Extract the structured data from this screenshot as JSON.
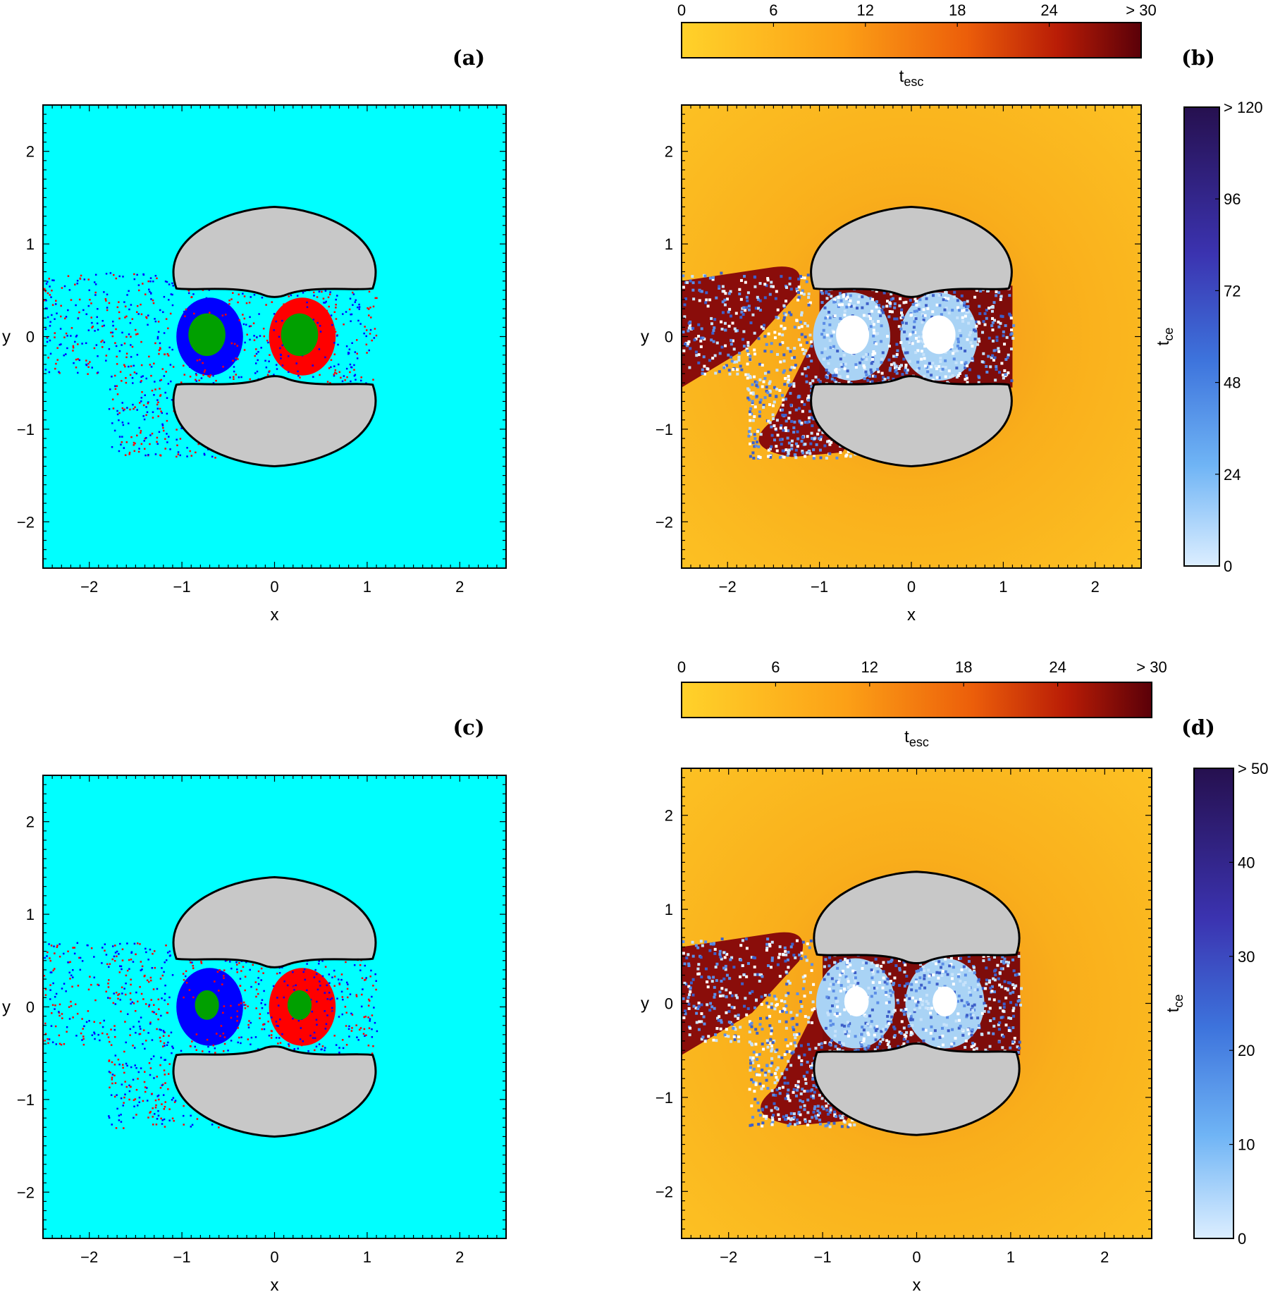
{
  "chart_data": [
    {
      "panel": "(a)",
      "type": "heatmap",
      "xlabel": "x",
      "ylabel": "y",
      "xlim": [
        -2.5,
        2.5
      ],
      "ylim": [
        -2.5,
        2.5
      ],
      "xticks": [
        -2,
        -1,
        0,
        1,
        2
      ],
      "yticks": [
        -2,
        -1,
        0,
        1,
        2
      ],
      "colors": {
        "background": "#00ffff",
        "basin_left": "#0000ff",
        "basin_right": "#ff0000",
        "trapped": "#00a000",
        "obstacle": "#c8c8c8"
      }
    },
    {
      "panel": "(b)",
      "type": "heatmap",
      "xlabel": "x",
      "ylabel": "y",
      "xlim": [
        -2.5,
        2.5
      ],
      "ylim": [
        -2.5,
        2.5
      ],
      "xticks": [
        -2,
        -1,
        0,
        1,
        2
      ],
      "yticks": [
        -2,
        -1,
        0,
        1,
        2
      ],
      "colorbar_top": {
        "label": "t",
        "label_sub": "esc",
        "ticks": [
          "0",
          "6",
          "12",
          "18",
          "24",
          "> 30"
        ]
      },
      "colorbar_right": {
        "label": "t",
        "label_sub": "ce",
        "ticks": [
          "0",
          "24",
          "48",
          "72",
          "96",
          "> 120"
        ]
      }
    },
    {
      "panel": "(c)",
      "type": "heatmap",
      "xlabel": "x",
      "ylabel": "y",
      "xlim": [
        -2.5,
        2.5
      ],
      "ylim": [
        -2.5,
        2.5
      ],
      "xticks": [
        -2,
        -1,
        0,
        1,
        2
      ],
      "yticks": [
        -2,
        -1,
        0,
        1,
        2
      ],
      "colors": {
        "background": "#00ffff",
        "basin_left": "#0000ff",
        "basin_right": "#ff0000",
        "trapped": "#00a000",
        "obstacle": "#c8c8c8"
      }
    },
    {
      "panel": "(d)",
      "type": "heatmap",
      "xlabel": "x",
      "ylabel": "y",
      "xlim": [
        -2.5,
        2.5
      ],
      "ylim": [
        -2.5,
        2.5
      ],
      "xticks": [
        -2,
        -1,
        0,
        1,
        2
      ],
      "yticks": [
        -2,
        -1,
        0,
        1,
        2
      ],
      "colorbar_top": {
        "label": "t",
        "label_sub": "esc",
        "ticks": [
          "0",
          "6",
          "12",
          "18",
          "24",
          "> 30"
        ]
      },
      "colorbar_right": {
        "label": "t",
        "label_sub": "ce",
        "ticks": [
          "0",
          "10",
          "20",
          "30",
          "40",
          "> 50"
        ]
      }
    }
  ]
}
